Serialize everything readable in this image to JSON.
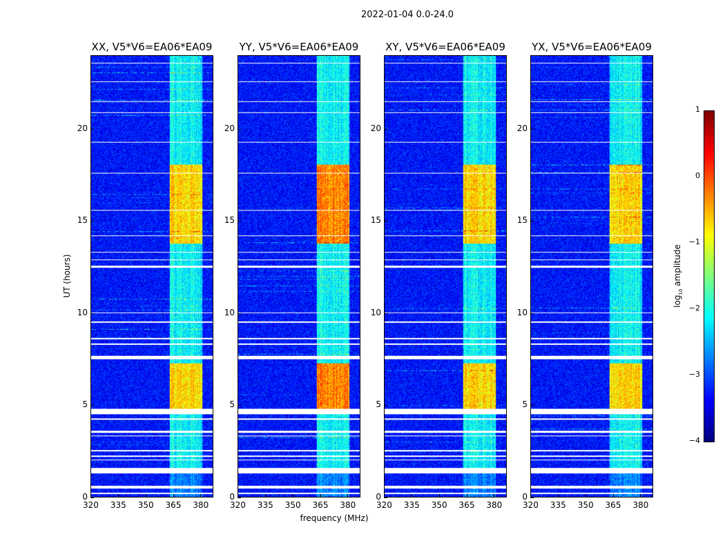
{
  "chart_data": {
    "type": "heatmap",
    "title": "2022-01-04 0.0-24.0",
    "xlabel": "frequency (MHz)",
    "ylabel": "UT (hours)",
    "xlim": [
      320,
      387
    ],
    "ylim": [
      0,
      24
    ],
    "xticks": [
      "320",
      "335",
      "350",
      "365",
      "380"
    ],
    "yticks": [
      "0",
      "5",
      "10",
      "15",
      "20"
    ],
    "panels": [
      {
        "title": "XX, V5*V6=EA06*EA09"
      },
      {
        "title": "YY, V5*V6=EA06*EA09"
      },
      {
        "title": "XY, V5*V6=EA06*EA09"
      },
      {
        "title": "YX, V5*V6=EA06*EA09"
      }
    ],
    "colorbar": {
      "label_prefix": "log",
      "label_sub": "10",
      "label_suffix": " amplitude",
      "range": [
        -4,
        1
      ],
      "ticks": [
        "1",
        "0",
        "−1",
        "−2",
        "−3",
        "−4"
      ],
      "colormap": "jet"
    },
    "background_log_amplitude": -3.3,
    "rfi_band_mhz": [
      363,
      381
    ],
    "strong_rfi_hours": [
      [
        4.8,
        7.3
      ],
      [
        13.8,
        18.1
      ]
    ],
    "flagged_hours": [
      [
        0.15,
        0.25
      ],
      [
        0.45,
        0.6
      ],
      [
        1.3,
        1.6
      ],
      [
        2.0,
        2.05
      ],
      [
        2.2,
        2.25
      ],
      [
        2.5,
        2.55
      ],
      [
        3.3,
        3.35
      ],
      [
        3.5,
        3.6
      ],
      [
        4.2,
        4.3
      ],
      [
        4.5,
        4.8
      ],
      [
        7.5,
        7.7
      ],
      [
        8.3,
        8.35
      ],
      [
        8.6,
        8.65
      ],
      [
        9.5,
        9.55
      ],
      [
        10.0,
        10.05
      ],
      [
        12.5,
        12.6
      ],
      [
        12.9,
        12.95
      ],
      [
        13.3,
        13.35
      ],
      [
        14.2,
        14.25
      ],
      [
        15.6,
        15.65
      ],
      [
        17.6,
        17.65
      ],
      [
        19.3,
        19.35
      ],
      [
        20.9,
        20.95
      ],
      [
        21.5,
        21.55
      ],
      [
        22.6,
        22.65
      ],
      [
        23.6,
        23.65
      ]
    ]
  }
}
